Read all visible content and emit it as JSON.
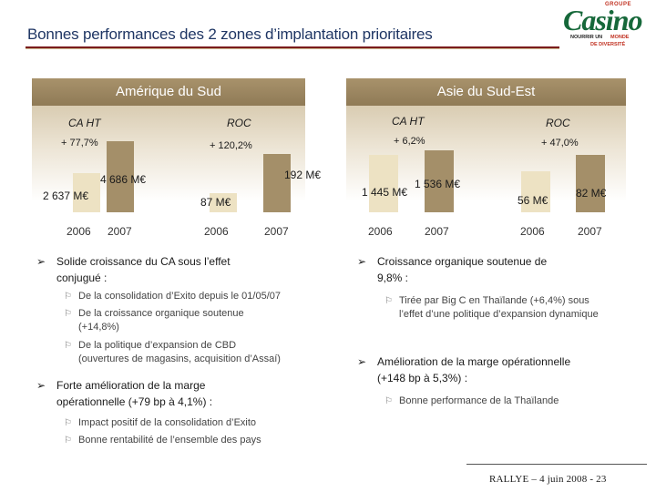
{
  "title": "Bonnes performances des 2 zones d’implantation prioritaires",
  "logo": {
    "groupe": "GROUPE",
    "name": "Casino",
    "tag_a": "NOURRIR UN",
    "tag_b": "MONDE",
    "tag_c": "DE DIVERSITÉ"
  },
  "colors": {
    "title": "#1f3664",
    "header": "#9a8560",
    "bar_2006": "#ede2c3",
    "bar_2007": "#a48f69",
    "rule": "#7a1c1c"
  },
  "left": {
    "header": "Amérique du Sud",
    "ca": {
      "label": "CA HT",
      "growth": "+ 77,7%",
      "v2006": "2 637 M€",
      "v2007": "4 686 M€",
      "y2006": "2006",
      "y2007": "2007"
    },
    "roc": {
      "label": "ROC",
      "growth": "+ 120,2%",
      "v2006": "87 M€",
      "v2007": "192 M€",
      "y2006": "2006",
      "y2007": "2007"
    },
    "bullets": [
      {
        "text1": "Solide croissance du CA sous l’effet",
        "text2": "conjugué :",
        "subs": [
          {
            "l1": "De la consolidation d’Exito depuis le 01/05/07",
            "l2": ""
          },
          {
            "l1": "De la croissance organique soutenue",
            "l2": "(+14,8%)"
          },
          {
            "l1": "De la politique d’expansion de CBD",
            "l2": "(ouvertures de magasins, acquisition d’Assaí)"
          }
        ]
      },
      {
        "text1": "Forte amélioration de la marge",
        "text2": "opérationnelle (+79 bp à 4,1%) :",
        "subs": [
          {
            "l1": "Impact positif de la consolidation d’Exito",
            "l2": ""
          },
          {
            "l1": "Bonne rentabilité de l’ensemble des pays",
            "l2": ""
          }
        ]
      }
    ]
  },
  "right": {
    "header": "Asie du Sud-Est",
    "ca": {
      "label": "CA HT",
      "growth": "+ 6,2%",
      "v2006": "1 445 M€",
      "v2007": "1 536 M€",
      "y2006": "2006",
      "y2007": "2007"
    },
    "roc": {
      "label": "ROC",
      "growth": "+ 47,0%",
      "v2006": "56 M€",
      "v2007": "82 M€",
      "y2006": "2006",
      "y2007": "2007"
    },
    "bullets": [
      {
        "text1": "Croissance organique soutenue de",
        "text2": "9,8% :",
        "subs": [
          {
            "l1": "Tirée par Big C en Thaïlande (+6,4%) sous",
            "l2": "l’effet d’une politique d’expansion dynamique"
          }
        ]
      },
      {
        "text1": "Amélioration de la marge opérationnelle",
        "text2": "(+148 bp à 5,3%) :",
        "subs": [
          {
            "l1": "Bonne performance de la Thaïlande",
            "l2": ""
          }
        ]
      }
    ]
  },
  "footer": "RALLYE – 4 juin 2008 - 23"
}
